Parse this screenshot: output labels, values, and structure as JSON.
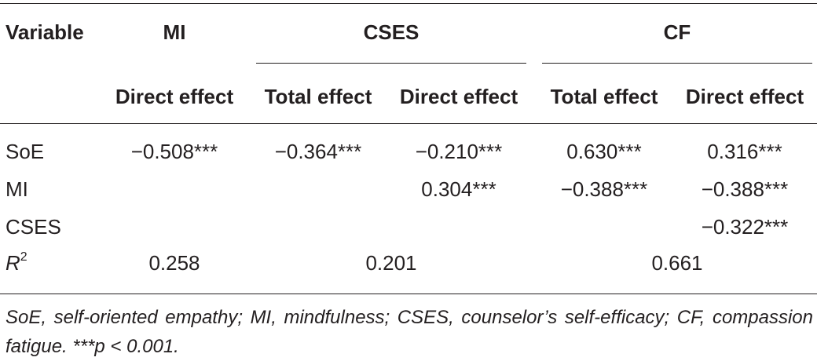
{
  "table": {
    "header": {
      "variable": "Variable",
      "groups": [
        "MI",
        "CSES",
        "CF"
      ],
      "subheaders": [
        "Direct effect",
        "Total effect",
        "Direct effect",
        "Total effect",
        "Direct effect"
      ]
    },
    "rows": [
      {
        "label": "SoE",
        "values": [
          "−0.508***",
          "−0.364***",
          "−0.210***",
          "0.630***",
          "0.316***"
        ]
      },
      {
        "label": "MI",
        "values": [
          "",
          "",
          "0.304***",
          "−0.388***",
          "−0.388***"
        ]
      },
      {
        "label": "CSES",
        "values": [
          "",
          "",
          "",
          "",
          "−0.322***"
        ]
      }
    ],
    "r2": {
      "label_base": "R",
      "label_sup": "2",
      "values": [
        "0.258",
        "0.201",
        "0.661"
      ]
    },
    "footnote": "SoE, self-oriented empathy; MI, mindfulness; CSES, counselor’s self-efficacy; CF, compassion fatigue. ***p < 0.001."
  }
}
